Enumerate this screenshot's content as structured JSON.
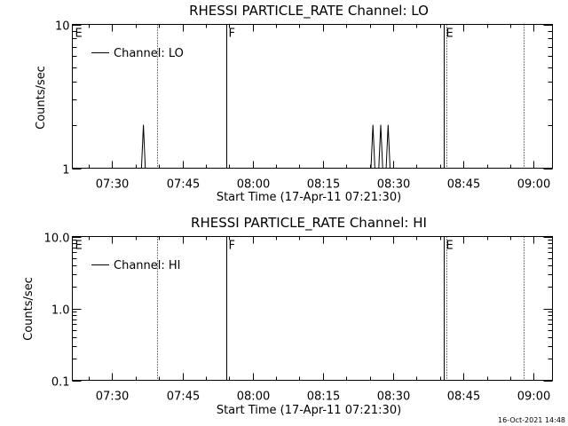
{
  "chart_data": [
    {
      "type": "line",
      "title": "RHESSI PARTICLE_RATE Channel: LO",
      "xlabel": "Start Time (17-Apr-11 07:21:30)",
      "ylabel": "Counts/sec",
      "yscale": "log",
      "ylim": [
        1,
        10
      ],
      "yticks": [
        "10",
        "1"
      ],
      "xlim": [
        "07:21:30",
        "09:04:00"
      ],
      "xticks": [
        "07:30",
        "07:45",
        "08:00",
        "08:15",
        "08:30",
        "08:45",
        "09:00"
      ],
      "legend": {
        "label": "Channel: LO",
        "placement": "top-left"
      },
      "series": [
        {
          "name": "Channel: LO",
          "points": [
            {
              "t": "07:36:15",
              "v": 1
            },
            {
              "t": "07:36:40",
              "v": 2
            },
            {
              "t": "07:37:05",
              "v": 1
            },
            {
              "t": "08:25:15",
              "v": 1
            },
            {
              "t": "08:25:40",
              "v": 2
            },
            {
              "t": "08:26:05",
              "v": 1
            },
            {
              "t": "08:26:55",
              "v": 1
            },
            {
              "t": "08:27:20",
              "v": 2
            },
            {
              "t": "08:27:45",
              "v": 1
            },
            {
              "t": "08:28:30",
              "v": 1
            },
            {
              "t": "08:28:55",
              "v": 2
            },
            {
              "t": "08:29:20",
              "v": 1
            }
          ]
        }
      ],
      "markers": [
        {
          "t": "07:21:30",
          "label": "E",
          "style": "none"
        },
        {
          "t": "07:39:30",
          "label": "",
          "style": "dotted"
        },
        {
          "t": "07:54:20",
          "label": "F",
          "style": "solid"
        },
        {
          "t": "08:40:50",
          "label": "E",
          "style": "solid"
        },
        {
          "t": "08:41:20",
          "label": "",
          "style": "dotted"
        },
        {
          "t": "08:57:50",
          "label": "",
          "style": "dotted"
        }
      ]
    },
    {
      "type": "line",
      "title": "RHESSI PARTICLE_RATE Channel: HI",
      "xlabel": "Start Time (17-Apr-11 07:21:30)",
      "ylabel": "Counts/sec",
      "yscale": "log",
      "ylim": [
        0.1,
        10
      ],
      "yticks": [
        "10.0",
        "1.0",
        "0.1"
      ],
      "xlim": [
        "07:21:30",
        "09:04:00"
      ],
      "xticks": [
        "07:30",
        "07:45",
        "08:00",
        "08:15",
        "08:30",
        "08:45",
        "09:00"
      ],
      "legend": {
        "label": "Channel: HI",
        "placement": "top-left"
      },
      "series": [
        {
          "name": "Channel: HI",
          "points": []
        }
      ],
      "markers": [
        {
          "t": "07:21:30",
          "label": "E",
          "style": "none"
        },
        {
          "t": "07:39:30",
          "label": "",
          "style": "dotted"
        },
        {
          "t": "07:54:20",
          "label": "F",
          "style": "solid"
        },
        {
          "t": "08:40:50",
          "label": "E",
          "style": "solid"
        },
        {
          "t": "08:41:20",
          "label": "",
          "style": "dotted"
        },
        {
          "t": "08:57:50",
          "label": "",
          "style": "dotted"
        }
      ]
    }
  ],
  "footer": {
    "timestamp": "16-Oct-2021 14:48"
  }
}
